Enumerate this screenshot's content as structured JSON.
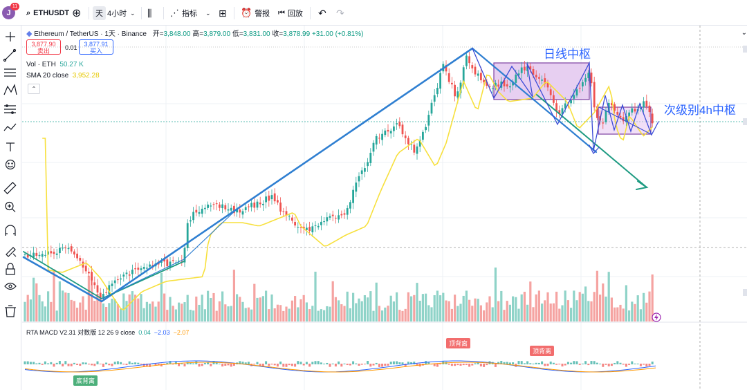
{
  "toolbar": {
    "avatar_letter": "J",
    "notif_count": "11",
    "symbol": "ETHUSDT",
    "interval_day": "天",
    "interval_4h": "4小时",
    "indicators": "指标",
    "alert": "警报",
    "replay": "回放"
  },
  "legend": {
    "title": "Ethereum / TetherUS · 1天 · Binance",
    "open_label": "开=",
    "open": "3,848.00",
    "high_label": "高=",
    "high": "3,879.00",
    "low_label": "低=",
    "low": "3,831.00",
    "close_label": "收=",
    "close": "3,878.99",
    "change": "+31.00 (+0.81%)",
    "sell_price": "3,877.90",
    "sell_label": "卖出",
    "spread": "0.01",
    "buy_price": "3,877.91",
    "buy_label": "买入",
    "vol_label": "Vol · ETH",
    "vol_value": "50.27 K",
    "sma_label": "SMA 20 close",
    "sma_value": "3,952.28",
    "macd_label": "RTA MACD V2.31 对数版 12 26 9 close",
    "macd_v1": "0.04",
    "macd_v2": "−2.03",
    "macd_v3": "−2.07"
  },
  "annotations": {
    "daily_pivot": "日线中枢",
    "sub_pivot": "次级别4h中枢",
    "top_div_1": "顶背离",
    "top_div_2": "顶背离",
    "bottom_div": "底背离"
  },
  "colors": {
    "up": "#26a69a",
    "down": "#ef5350",
    "sma": "#f7e03c",
    "blue": "#2f7fd1",
    "green": "#1e9b82",
    "zone": "#d4a8e6"
  }
}
